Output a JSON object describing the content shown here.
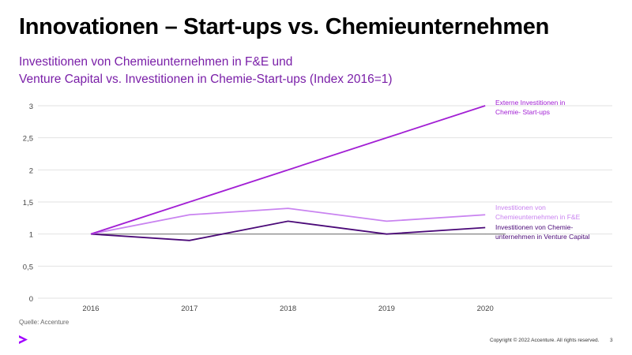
{
  "title": "Innovationen – Start-ups vs. Chemieunternehmen",
  "subtitle_lines": [
    "Investitionen von Chemieunternehmen in F&E und",
    "Venture Capital vs. Investitionen in Chemie-Start-ups (Index 2016=1)"
  ],
  "source": "Quelle: Accenture",
  "footer": {
    "copyright": "Copyright © 2022 Accenture. All rights reserved.",
    "page": "3"
  },
  "logo": "Accenture",
  "chart_data": {
    "type": "line",
    "categories": [
      "2016",
      "2017",
      "2018",
      "2019",
      "2020"
    ],
    "ylim": [
      0,
      3
    ],
    "yticks": [
      "0",
      "0,5",
      "1",
      "1,5",
      "2",
      "2,5",
      "3"
    ],
    "grid": true,
    "legend": "right, labels at line ends",
    "series": [
      {
        "name": "Externe Investitionen in Chemie- Start-ups",
        "values": [
          1,
          1.5,
          2,
          2.5,
          3
        ],
        "color": "#a21fd4",
        "label_lines": [
          "Externe Investitionen in",
          "Chemie- Start-ups"
        ]
      },
      {
        "name": "Investitionen von Chemieunternehmen in F&E",
        "values": [
          1,
          1.3,
          1.4,
          1.2,
          1.3
        ],
        "color": "#c983f0",
        "label_lines": [
          "Investitionen von",
          "Chemieunternehmen in F&E"
        ]
      },
      {
        "name": "Investitionen von Chemie-unternehmen in Venture Capital",
        "values": [
          1,
          0.9,
          1.2,
          1.0,
          1.1
        ],
        "color": "#4b0a78",
        "label_lines": [
          "Investitionen von Chemie-",
          "unternehmen in Venture Capital"
        ]
      },
      {
        "values": [
          1,
          1,
          1,
          1,
          1
        ],
        "color": "#777777"
      }
    ]
  }
}
